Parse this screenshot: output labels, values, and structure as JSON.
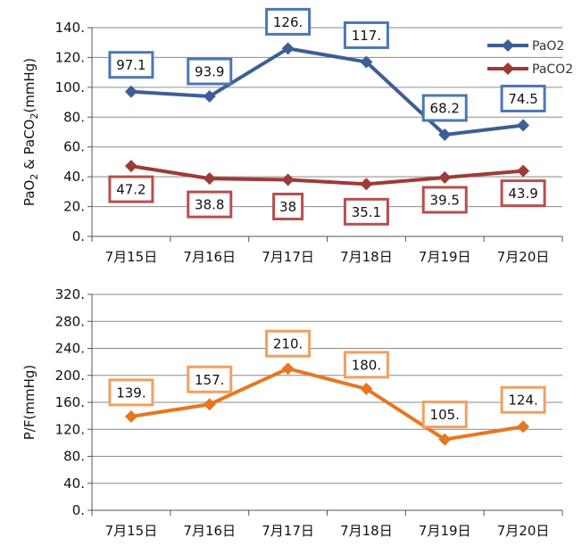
{
  "chart_data": [
    {
      "type": "line",
      "categories": [
        "7月15日",
        "7月16日",
        "7月17日",
        "7月18日",
        "7月19日",
        "7月20日"
      ],
      "ylabel_parts": [
        "PaO",
        "2",
        " & PaCO",
        "2",
        "(mmHg)"
      ],
      "ylim": [
        0,
        140
      ],
      "yticks": [
        0,
        20,
        40,
        60,
        80,
        100,
        120,
        140
      ],
      "ytick_labels": [
        "0.",
        "20.",
        "40.",
        "60.",
        "80.",
        "100.",
        "120.",
        "140."
      ],
      "grid": true,
      "legend_position": "top-right",
      "series": [
        {
          "name": "PaO2",
          "color": "#3c5f94",
          "values": [
            97.1,
            93.9,
            126,
            117,
            68.2,
            74.5
          ],
          "data_labels": [
            "97.1",
            "93.9",
            "126.",
            "117.",
            "68.2",
            "74.5"
          ],
          "label_position": "above"
        },
        {
          "name": "PaCO2",
          "color": "#9e3a38",
          "values": [
            47.2,
            38.8,
            38,
            35.1,
            39.5,
            43.9
          ],
          "data_labels": [
            "47.2",
            "38.8",
            "38",
            "35.1",
            "39.5",
            "43.9"
          ],
          "label_position": "below"
        }
      ]
    },
    {
      "type": "line",
      "categories": [
        "7月15日",
        "7月16日",
        "7月17日",
        "7月18日",
        "7月19日",
        "7月20日"
      ],
      "ylabel_parts": [
        "P/F(mmHg)"
      ],
      "ylim": [
        0,
        320
      ],
      "yticks": [
        0,
        40,
        80,
        120,
        160,
        200,
        240,
        280,
        320
      ],
      "ytick_labels": [
        "0.",
        "40.",
        "80.",
        "120.",
        "160.",
        "200.",
        "240.",
        "280.",
        "320."
      ],
      "grid": true,
      "legend_position": "none",
      "series": [
        {
          "color": "#e8761f",
          "values": [
            139,
            157,
            210,
            180,
            105,
            124
          ],
          "data_labels": [
            "139.",
            "157.",
            "210.",
            "180.",
            "105.",
            "124."
          ],
          "label_position": "above"
        }
      ]
    }
  ],
  "colors": {
    "gridline": "#8a8a8a",
    "axis": "#555555",
    "pao2_label_border": "#4a78b5",
    "paco2_label_border": "#b5504d",
    "pf_label_border": "#f0a060"
  }
}
